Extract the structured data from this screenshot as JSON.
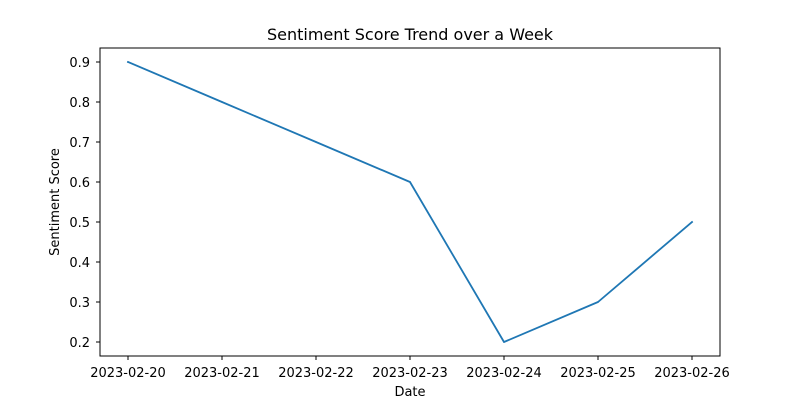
{
  "chart_data": {
    "type": "line",
    "title": "Sentiment Score Trend over a Week",
    "xlabel": "Date",
    "ylabel": "Sentiment Score",
    "x": [
      "2023-02-20",
      "2023-02-21",
      "2023-02-22",
      "2023-02-23",
      "2023-02-24",
      "2023-02-25",
      "2023-02-26"
    ],
    "x_ticks": [
      "2023-02-20",
      "2023-02-21",
      "2023-02-22",
      "2023-02-23",
      "2023-02-24",
      "2023-02-25",
      "2023-02-26"
    ],
    "y_ticks": [
      "0.2",
      "0.3",
      "0.4",
      "0.5",
      "0.6",
      "0.7",
      "0.8",
      "0.9"
    ],
    "ylim": [
      0.165,
      0.935
    ],
    "grid": false,
    "series": [
      {
        "values": [
          0.9,
          0.8,
          0.7,
          0.6,
          0.2,
          0.3,
          0.5
        ],
        "color": "#1f77b4"
      }
    ]
  }
}
